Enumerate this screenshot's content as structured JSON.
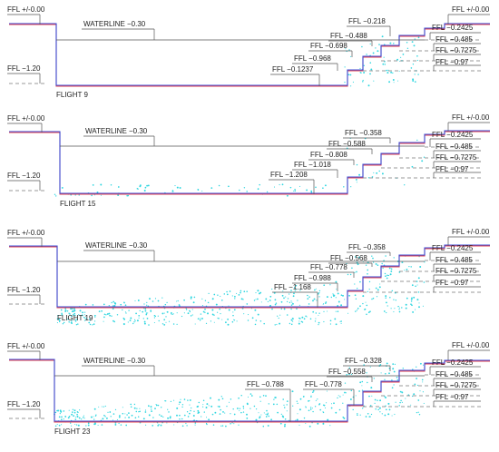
{
  "colors": {
    "section_red": "#e6434c",
    "section_blue": "#3b4fd8",
    "points_cyan": "#2fd6e0"
  },
  "panels": [
    {
      "title": "FLIGHT 9",
      "left_top": "FFL +/-0.00",
      "left_bottom": "FFL −1.20",
      "waterline": "WATERLINE −0.30",
      "right_top": "FFL +/-0.00",
      "mid_labels": [
        "FFL −0.218",
        "FFL −0.488",
        "FFL −0.698",
        "FFL −0.968",
        "FFL −0.1237"
      ],
      "right_labels": [
        "FFL −0.2425",
        "FFL −0.485",
        "FFL −0.7275",
        "FFL −0.97"
      ]
    },
    {
      "title": "FLIGHT 15",
      "left_top": "FFL +/-0.00",
      "left_bottom": "FFL −1.20",
      "waterline": "WATERLINE −0.30",
      "right_top": "FFL +/-0.00",
      "mid_labels": [
        "FFL −0.358",
        "FFL −0.588",
        "FFL −0.808",
        "FFL −1.018",
        "FFL −1.208"
      ],
      "right_labels": [
        "FFL −0.2425",
        "FFL −0.485",
        "FFL −0.7275",
        "FFL −0.97"
      ]
    },
    {
      "title": "FLIGHT 19",
      "left_top": "FFL +/-0.00",
      "left_bottom": "FFL −1.20",
      "waterline": "WATERLINE −0.30",
      "right_top": "FFL +/-0.00",
      "mid_labels": [
        "FFL −0.358",
        "FFL −0.568",
        "FFL −0.778",
        "FFL −0.988",
        "FFL −1.168"
      ],
      "right_labels": [
        "FFL −0.2425",
        "FFL −0.485",
        "FFL −0.7275",
        "FFL −0.97"
      ]
    },
    {
      "title": "FLIGHT 23",
      "left_top": "FFL +/-0.00",
      "left_bottom": "FFL −1.20",
      "waterline": "WATERLINE −0.30",
      "right_top": "FFL +/-0.00",
      "mid_labels": [
        "FFL −0.328",
        "FFL −0.558",
        "FFL −0.788",
        "FFL −0.778"
      ],
      "right_labels": [
        "FFL −0.2425",
        "FFL −0.485",
        "FFL −0.7275",
        "FFL −0.97"
      ]
    }
  ]
}
